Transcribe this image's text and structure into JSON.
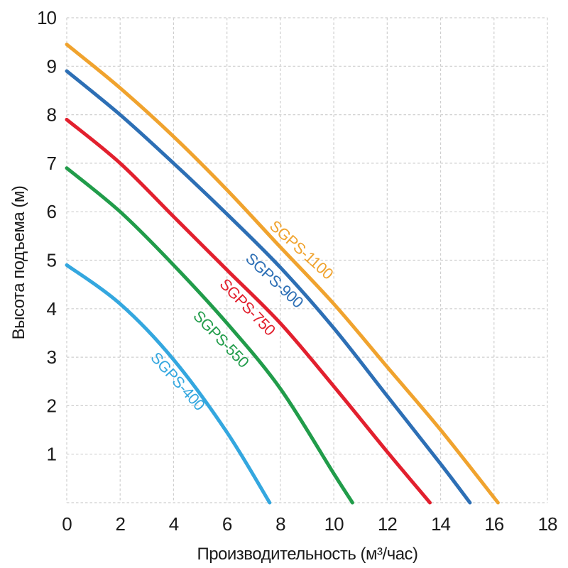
{
  "chart_data": {
    "type": "line",
    "title": "",
    "xlabel": "Производительность (м³/час)",
    "ylabel": "Высота подъема (м)",
    "xlim": [
      0,
      18
    ],
    "ylim": [
      0,
      10
    ],
    "x_ticks": [
      0,
      2,
      4,
      6,
      8,
      10,
      12,
      14,
      16,
      18
    ],
    "y_ticks": [
      1,
      2,
      3,
      4,
      5,
      6,
      7,
      8,
      9,
      10
    ],
    "grid": true,
    "legend_position": "inline-rotated-curve-labels",
    "colors": {
      "grid": "#cfcfcf",
      "text": "#1b1b1b",
      "background": "#ffffff"
    },
    "series": [
      {
        "name": "SGPS-400",
        "color": "#34A7DF",
        "points": [
          [
            0,
            4.9
          ],
          [
            2,
            4.1
          ],
          [
            4,
            2.95
          ],
          [
            6,
            1.45
          ],
          [
            7.6,
            0
          ]
        ],
        "label": {
          "text": "SGPS-400",
          "x": 4.15,
          "y": 2.5,
          "angle": 48
        }
      },
      {
        "name": "SGPS-550",
        "color": "#219C4A",
        "points": [
          [
            0,
            6.9
          ],
          [
            2,
            6.0
          ],
          [
            4,
            4.9
          ],
          [
            6,
            3.7
          ],
          [
            8,
            2.35
          ],
          [
            10,
            0.6
          ],
          [
            10.7,
            0
          ]
        ],
        "label": {
          "text": "SGPS-550",
          "x": 5.77,
          "y": 3.37,
          "angle": 46
        }
      },
      {
        "name": "SGPS-750",
        "color": "#E2202E",
        "points": [
          [
            0,
            7.9
          ],
          [
            2,
            7.0
          ],
          [
            4,
            5.9
          ],
          [
            6,
            4.8
          ],
          [
            8,
            3.7
          ],
          [
            10,
            2.4
          ],
          [
            12,
            1.05
          ],
          [
            13.6,
            0
          ]
        ],
        "label": {
          "text": "SGPS-750",
          "x": 6.76,
          "y": 4.03,
          "angle": 46
        }
      },
      {
        "name": "SGPS-900",
        "color": "#2D6FB5",
        "points": [
          [
            0,
            8.9
          ],
          [
            2,
            8.0
          ],
          [
            4,
            7.0
          ],
          [
            6,
            5.95
          ],
          [
            8,
            4.85
          ],
          [
            10,
            3.6
          ],
          [
            12,
            2.2
          ],
          [
            14,
            0.8
          ],
          [
            15.1,
            0
          ]
        ],
        "label": {
          "text": "SGPS-900",
          "x": 7.77,
          "y": 4.58,
          "angle": 43
        }
      },
      {
        "name": "SGPS-1100",
        "color": "#F0A32E",
        "points": [
          [
            0,
            9.45
          ],
          [
            2,
            8.55
          ],
          [
            4,
            7.55
          ],
          [
            6,
            6.45
          ],
          [
            8,
            5.27
          ],
          [
            10,
            4.1
          ],
          [
            12,
            2.8
          ],
          [
            14,
            1.5
          ],
          [
            16.15,
            0
          ]
        ],
        "label": {
          "text": "SGPS-1100",
          "x": 8.78,
          "y": 5.21,
          "angle": 42
        }
      }
    ]
  }
}
